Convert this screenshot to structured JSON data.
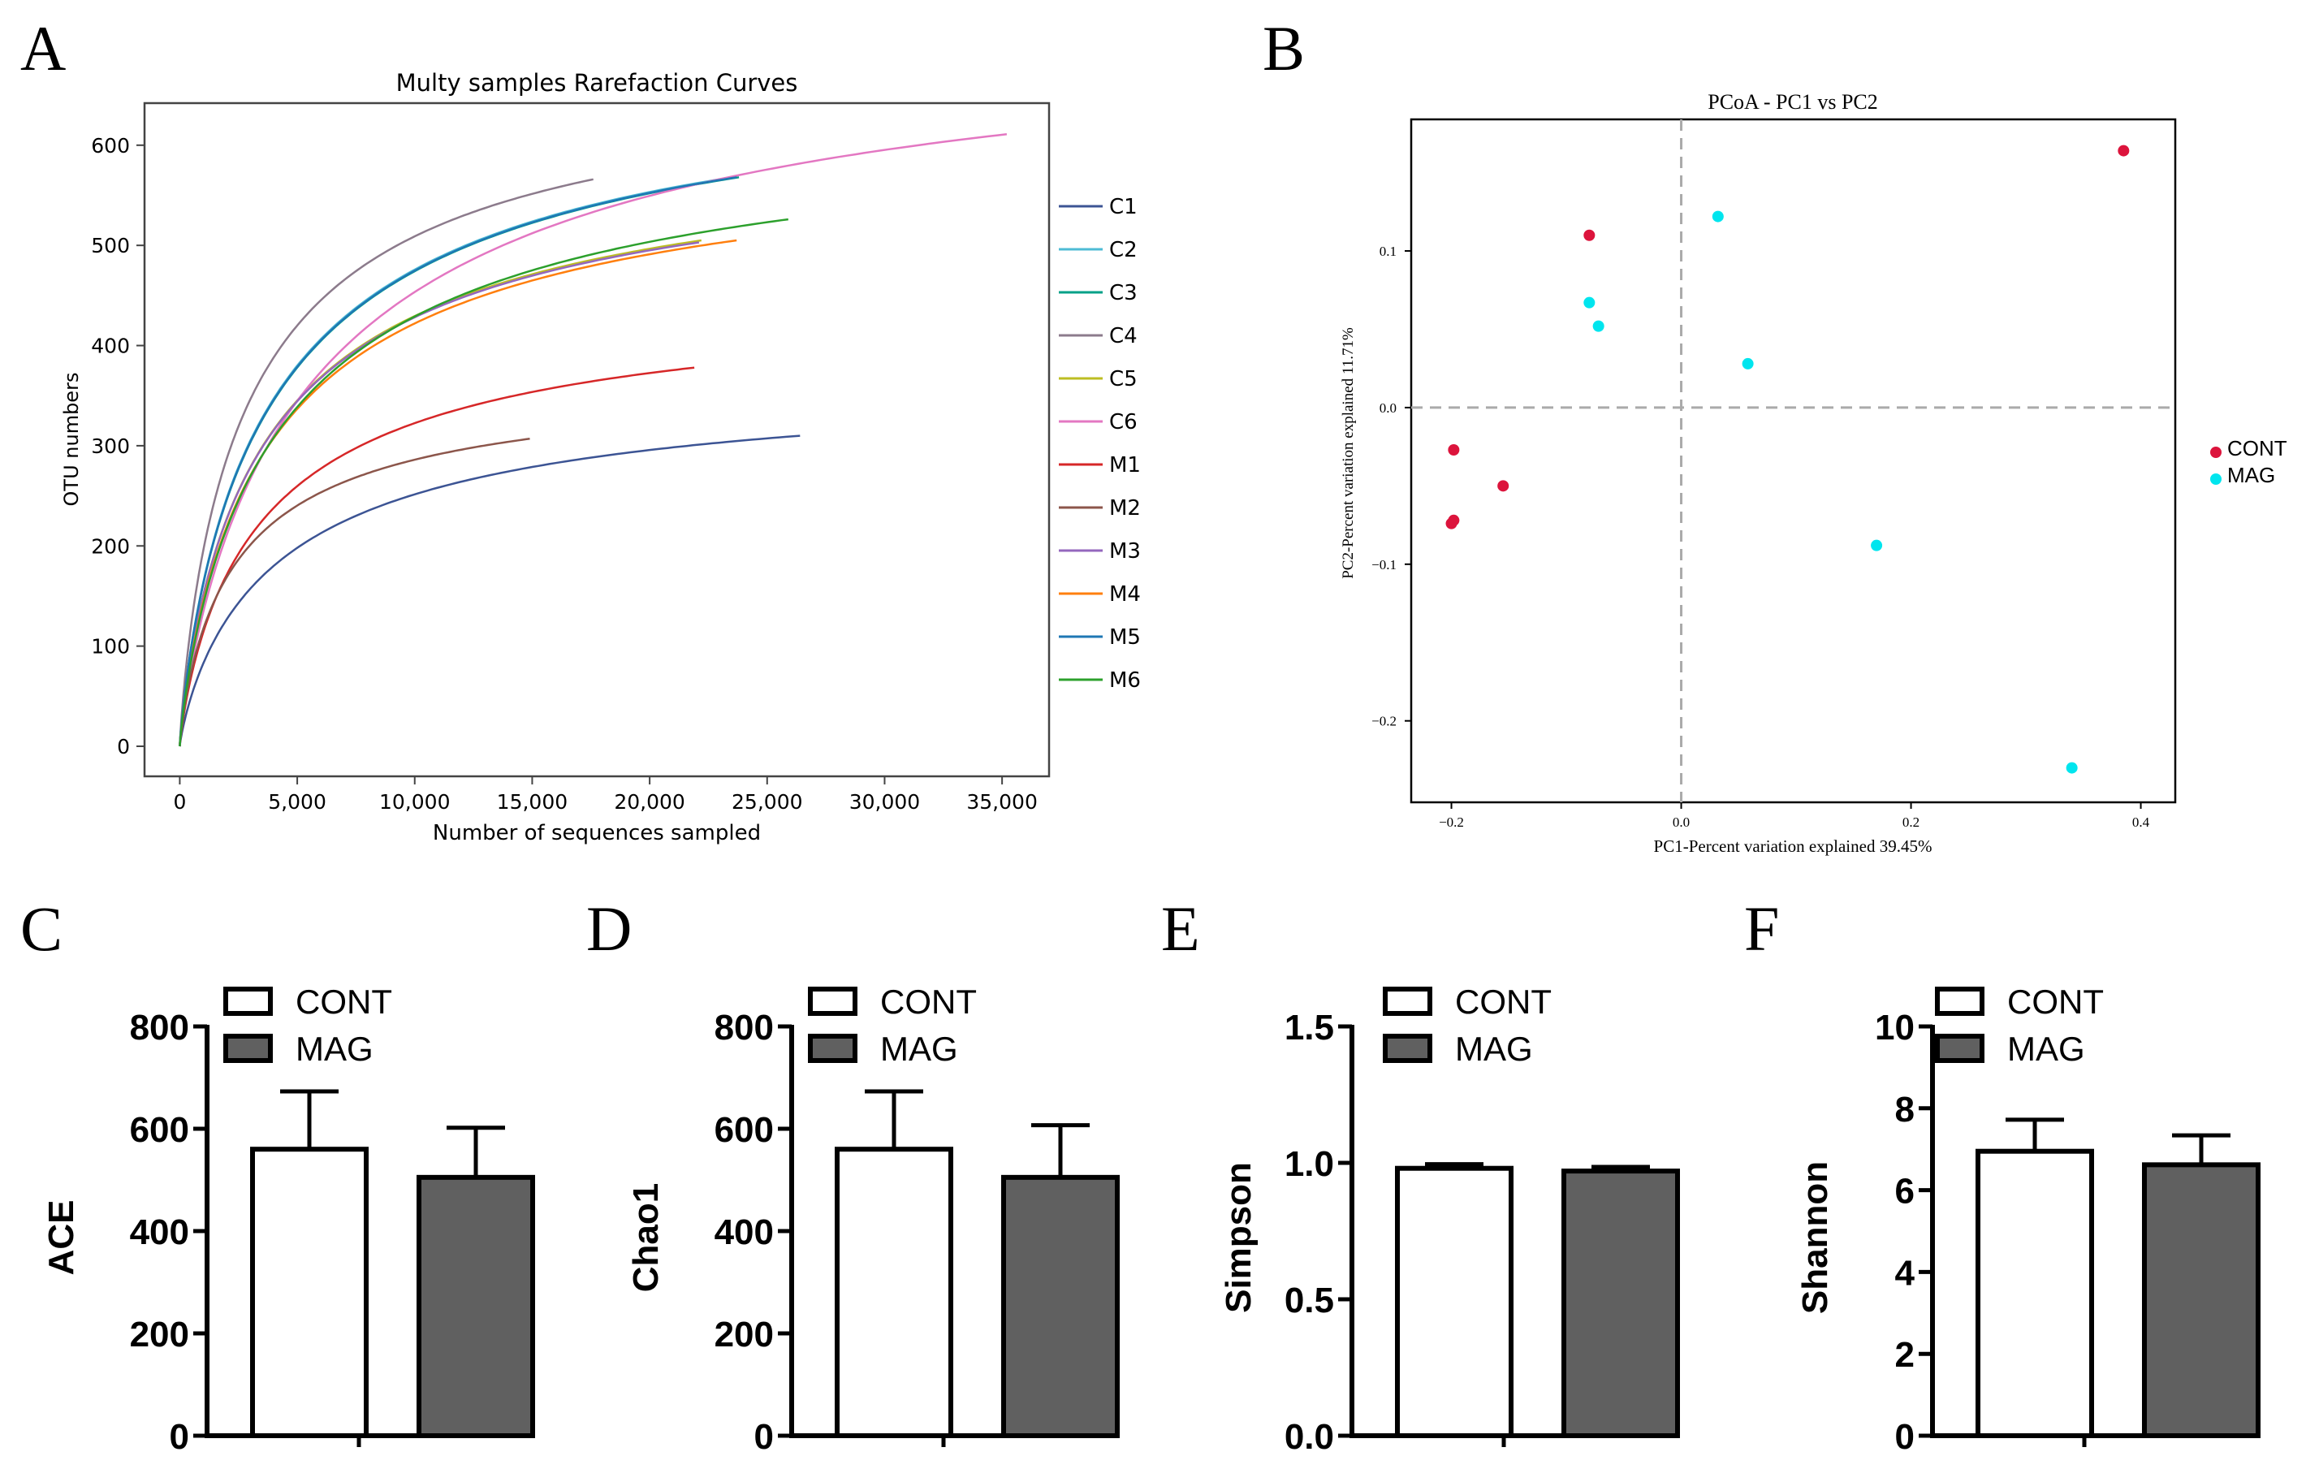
{
  "panels": {
    "A": "A",
    "B": "B",
    "C": "C",
    "D": "D",
    "E": "E",
    "F": "F"
  },
  "chart_data": [
    {
      "id": "A",
      "type": "line",
      "title": "Multy samples Rarefaction Curves",
      "xlabel": "Number of sequences sampled",
      "ylabel": "OTU numbers",
      "xlim": [
        -1500,
        37000
      ],
      "ylim": [
        -30,
        642
      ],
      "xticks": [
        0,
        5000,
        10000,
        15000,
        20000,
        25000,
        30000,
        35000
      ],
      "xtick_labels": [
        "0",
        "5,000",
        "10,000",
        "15,000",
        "20,000",
        "25,000",
        "30,000",
        "35,000"
      ],
      "yticks": [
        0,
        100,
        200,
        300,
        400,
        500,
        600
      ],
      "ytick_labels": [
        "0",
        "100",
        "200",
        "300",
        "400",
        "500",
        "600"
      ],
      "legend_position": "right",
      "series": [
        {
          "name": "C1",
          "color": "#3c5494",
          "max_x": 26400,
          "max_y": 310
        },
        {
          "name": "C2",
          "color": "#4dbbd5",
          "max_x": 23500,
          "max_y": 568
        },
        {
          "name": "C3",
          "color": "#00a087",
          "max_x": 23800,
          "max_y": 568
        },
        {
          "name": "C4",
          "color": "#8c7b8c",
          "max_x": 17600,
          "max_y": 566
        },
        {
          "name": "C5",
          "color": "#bcbd22",
          "max_x": 22200,
          "max_y": 505
        },
        {
          "name": "C6",
          "color": "#e377c2",
          "max_x": 35200,
          "max_y": 611
        },
        {
          "name": "M1",
          "color": "#d62728",
          "max_x": 21900,
          "max_y": 378
        },
        {
          "name": "M2",
          "color": "#8c564b",
          "max_x": 14900,
          "max_y": 307
        },
        {
          "name": "M3",
          "color": "#9467bd",
          "max_x": 22100,
          "max_y": 503
        },
        {
          "name": "M4",
          "color": "#ff7f0e",
          "max_x": 23700,
          "max_y": 505
        },
        {
          "name": "M5",
          "color": "#1f77b4",
          "max_x": 23700,
          "max_y": 568
        },
        {
          "name": "M6",
          "color": "#2ca02c",
          "max_x": 25900,
          "max_y": 526
        }
      ]
    },
    {
      "id": "B",
      "type": "scatter",
      "title": "PCoA - PC1 vs PC2",
      "xlabel": "PC1-Percent variation explained 39.45%",
      "ylabel": "PC2-Percent variation explained 11.71%",
      "xlim": [
        -0.235,
        0.43
      ],
      "ylim": [
        -0.252,
        0.184
      ],
      "xticks": [
        -0.2,
        0.0,
        0.2,
        0.4
      ],
      "xtick_labels": [
        "−0.2",
        "0.0",
        "0.2",
        "0.4"
      ],
      "yticks": [
        -0.2,
        -0.1,
        0.0,
        0.1
      ],
      "ytick_labels": [
        "−0.2",
        "−0.1",
        "0.0",
        "0.1"
      ],
      "legend_position": "right",
      "series": [
        {
          "name": "CONT",
          "color": "#dc143c",
          "points": [
            [
              0.385,
              0.164
            ],
            [
              -0.08,
              0.11
            ],
            [
              -0.198,
              -0.027
            ],
            [
              -0.155,
              -0.05
            ],
            [
              -0.2,
              -0.074
            ],
            [
              -0.198,
              -0.072
            ]
          ]
        },
        {
          "name": "MAG",
          "color": "#00e5ee",
          "points": [
            [
              0.032,
              0.122
            ],
            [
              -0.08,
              0.067
            ],
            [
              -0.072,
              0.052
            ],
            [
              0.058,
              0.028
            ],
            [
              0.17,
              -0.088
            ],
            [
              0.34,
              -0.23
            ]
          ]
        }
      ]
    },
    {
      "id": "C",
      "type": "bar",
      "ylabel": "ACE",
      "categories": [
        "CONT",
        "MAG"
      ],
      "values": [
        560,
        505
      ],
      "errors": [
        113,
        97
      ],
      "ylim": [
        0,
        800
      ],
      "yticks": [
        0,
        200,
        400,
        600,
        800
      ],
      "ytick_labels": [
        "0",
        "200",
        "400",
        "600",
        "800"
      ]
    },
    {
      "id": "D",
      "type": "bar",
      "ylabel": "Chao1",
      "categories": [
        "CONT",
        "MAG"
      ],
      "values": [
        560,
        505
      ],
      "errors": [
        113,
        102
      ],
      "ylim": [
        0,
        800
      ],
      "yticks": [
        0,
        200,
        400,
        600,
        800
      ],
      "ytick_labels": [
        "0",
        "200",
        "400",
        "600",
        "800"
      ]
    },
    {
      "id": "E",
      "type": "bar",
      "ylabel": "Simpson",
      "categories": [
        "CONT",
        "MAG"
      ],
      "values": [
        0.98,
        0.97
      ],
      "errors": [
        0.015,
        0.015
      ],
      "ylim": [
        0,
        1.5
      ],
      "yticks": [
        0,
        0.5,
        1.0,
        1.5
      ],
      "ytick_labels": [
        "0.0",
        "0.5",
        "1.0",
        "1.5"
      ]
    },
    {
      "id": "F",
      "type": "bar",
      "ylabel": "Shannon",
      "categories": [
        "CONT",
        "MAG"
      ],
      "values": [
        6.95,
        6.62
      ],
      "errors": [
        0.77,
        0.72
      ],
      "ylim": [
        0,
        10
      ],
      "yticks": [
        0,
        2,
        4,
        6,
        8,
        10
      ],
      "ytick_labels": [
        "0",
        "2",
        "4",
        "6",
        "8",
        "10"
      ]
    }
  ],
  "bar_fill": {
    "CONT": "#ffffff",
    "MAG": "#606060"
  }
}
